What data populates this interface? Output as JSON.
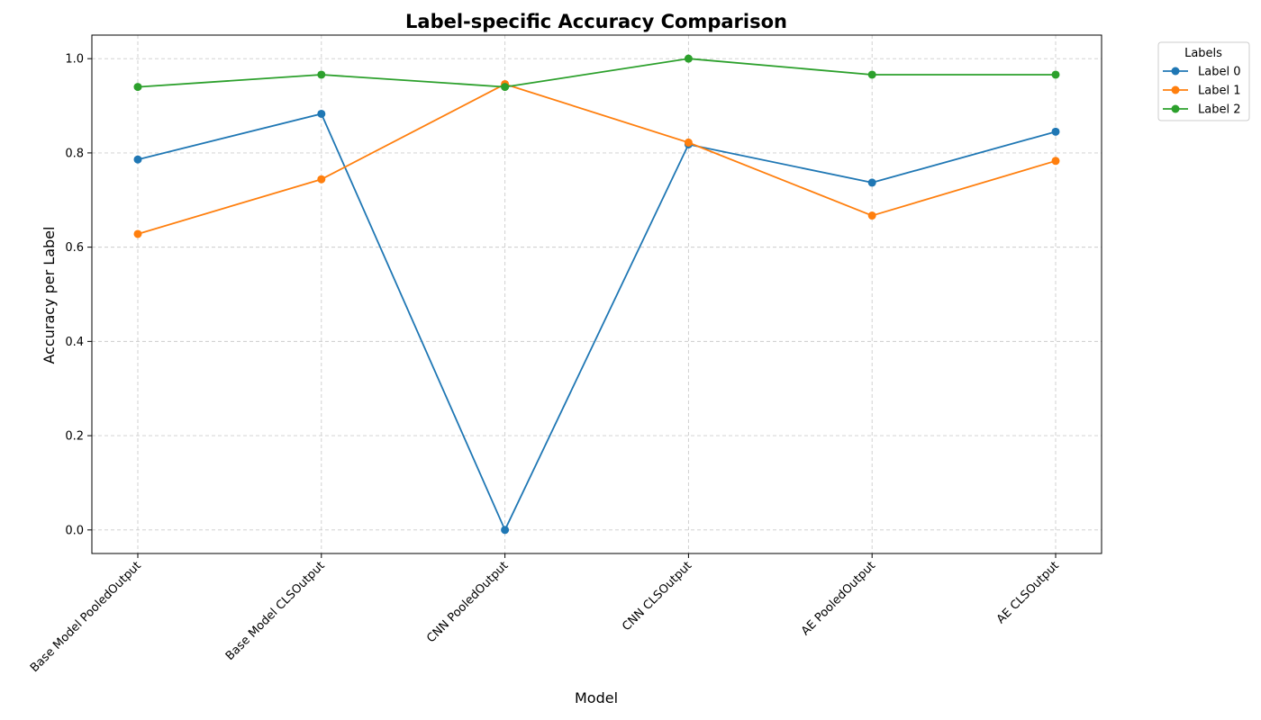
{
  "chart_data": {
    "type": "line",
    "title": "Label-specific Accuracy Comparison",
    "xlabel": "Model",
    "ylabel": "Accuracy per Label",
    "categories": [
      "Base Model PooledOutput",
      "Base Model CLSOutput",
      "CNN PooledOutput",
      "CNN CLSOutput",
      "AE PooledOutput",
      "AE CLSOutput"
    ],
    "ylim": [
      -0.05,
      1.05
    ],
    "yticks": [
      "0.0",
      "0.2",
      "0.4",
      "0.6",
      "0.8",
      "1.0"
    ],
    "grid": true,
    "legend": {
      "title": "Labels",
      "placement": "outside-top-right"
    },
    "series": [
      {
        "name": "Label 0",
        "color": "#1f77b4",
        "values": [
          0.786,
          0.883,
          0.0,
          0.818,
          0.737,
          0.845
        ]
      },
      {
        "name": "Label 1",
        "color": "#ff7f0e",
        "values": [
          0.628,
          0.744,
          0.946,
          0.822,
          0.667,
          0.783
        ]
      },
      {
        "name": "Label 2",
        "color": "#2ca02c",
        "values": [
          0.94,
          0.966,
          0.94,
          1.0,
          0.966,
          0.966
        ]
      }
    ]
  }
}
